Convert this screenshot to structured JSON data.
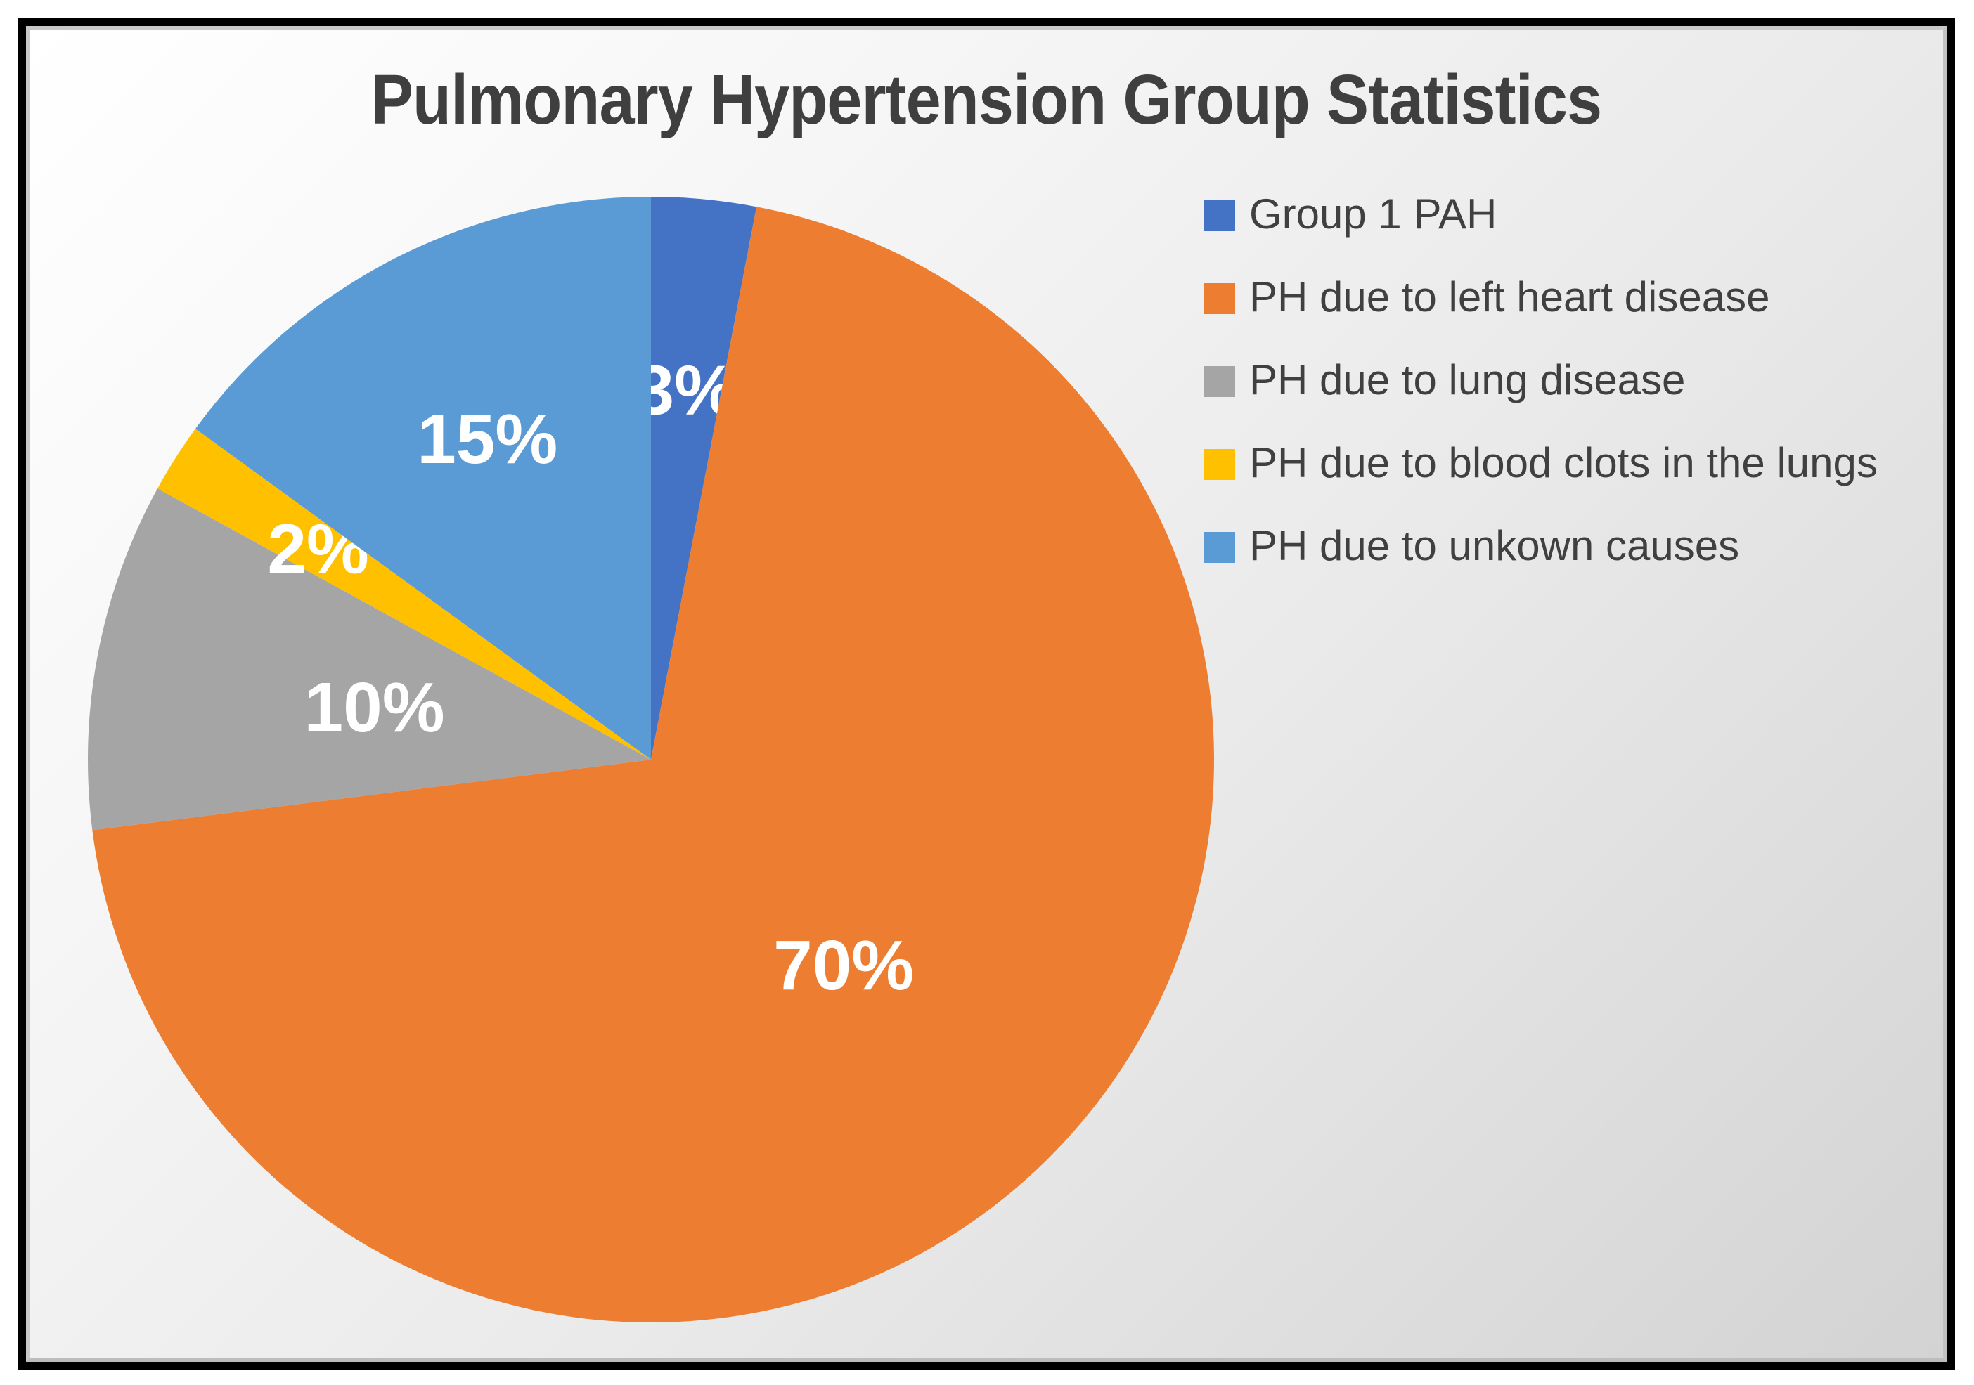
{
  "chart_data": {
    "type": "pie",
    "title": "Pulmonary Hypertension Group Statistics",
    "legend_position": "right",
    "start_angle_deg": 0,
    "slices": [
      {
        "label": "Group 1 PAH",
        "value": 3,
        "data_label": "3%",
        "color": "#4472C4"
      },
      {
        "label": "PH due to left heart disease",
        "value": 70,
        "data_label": "70%",
        "color": "#ED7D31"
      },
      {
        "label": "PH due to lung disease",
        "value": 10,
        "data_label": "10%",
        "color": "#A5A5A5"
      },
      {
        "label": "PH due to blood clots in the lungs",
        "value": 2,
        "data_label": "2%",
        "color": "#FFC000"
      },
      {
        "label": "PH due to unkown causes",
        "value": 15,
        "data_label": "15%",
        "color": "#5B9BD5"
      }
    ],
    "data_label_color": "#FFFFFF",
    "layout": {
      "center": [
        889,
        1044
      ],
      "radius": 801,
      "label_radius_fractions": [
        0.66,
        0.5,
        0.5,
        0.7,
        0.64
      ]
    }
  }
}
